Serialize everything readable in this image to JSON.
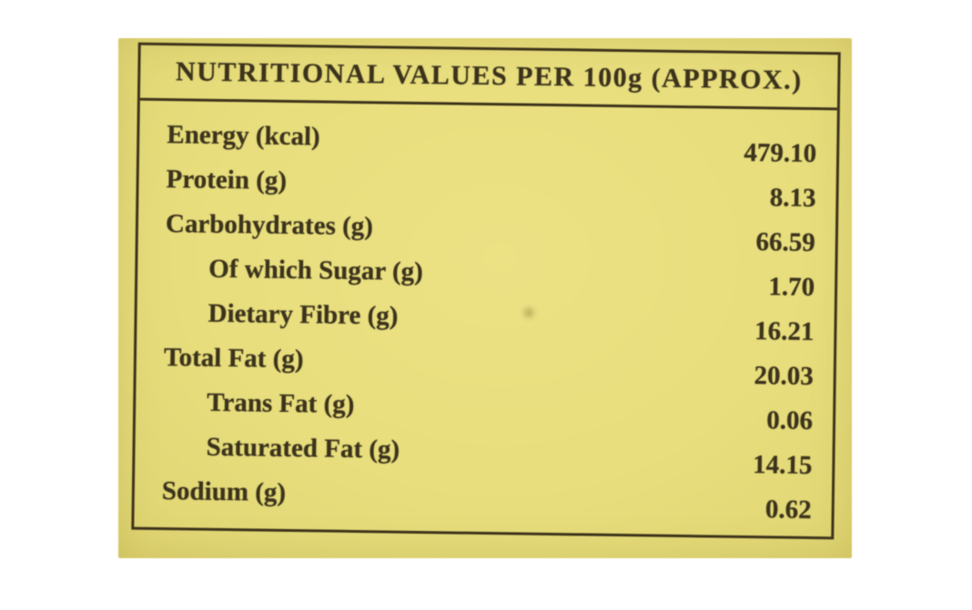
{
  "photo": {
    "background_color": "#e8de7d",
    "ink_color": "#3c331c",
    "border_color": "#3e331a",
    "canvas_color": "#ffffff"
  },
  "table": {
    "header": "NUTRITIONAL VALUES PER 100g (APPROX.)",
    "rows": [
      {
        "label": "Energy (kcal)",
        "value": "479.10",
        "indent": false
      },
      {
        "label": "Protein (g)",
        "value": "8.13",
        "indent": false
      },
      {
        "label": "Carbohydrates (g)",
        "value": "66.59",
        "indent": false
      },
      {
        "label": "Of which Sugar (g)",
        "value": "1.70",
        "indent": true
      },
      {
        "label": "Dietary Fibre (g)",
        "value": "16.21",
        "indent": true
      },
      {
        "label": "Total Fat (g)",
        "value": "20.03",
        "indent": false
      },
      {
        "label": "Trans Fat (g)",
        "value": "0.06",
        "indent": true
      },
      {
        "label": "Saturated Fat (g)",
        "value": "14.15",
        "indent": true
      },
      {
        "label": "Sodium (g)",
        "value": "0.62",
        "indent": false
      }
    ]
  }
}
